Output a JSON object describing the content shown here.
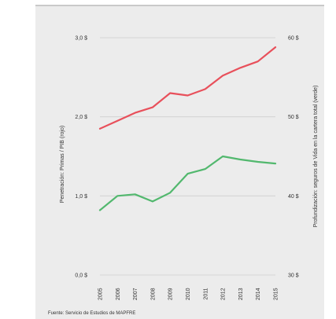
{
  "chart_data": {
    "type": "line",
    "x": [
      "2005",
      "2006",
      "2007",
      "2008",
      "2009",
      "2010",
      "2011",
      "2012",
      "2013",
      "2014",
      "2015"
    ],
    "series": [
      {
        "values": [
          1.85,
          1.95,
          2.05,
          2.12,
          2.3,
          2.27,
          2.35,
          2.52,
          2.62,
          2.7,
          2.88
        ],
        "color": "#e8505b",
        "axis": "left"
      },
      {
        "values": [
          38.2,
          40.0,
          40.2,
          39.3,
          40.4,
          42.8,
          43.4,
          45.0,
          44.6,
          44.3,
          44.1
        ],
        "color": "#52b86e",
        "axis": "right"
      }
    ],
    "ylabel": "Penetración: Primas / PIB (rojo)",
    "y2label": "Profundización: seguros de Vida en la cartera total (verde)",
    "ylim": [
      0,
      3
    ],
    "y2lim": [
      30,
      60
    ],
    "yticks": [
      "0,0 $",
      "1,0 $",
      "2,0 $",
      "3,0 $"
    ],
    "y2ticks": [
      "30 $",
      "40 $",
      "50 $",
      "60 $"
    ],
    "grid": true,
    "source": "Fuente: Servicio de Estudios de MAPFRE"
  }
}
